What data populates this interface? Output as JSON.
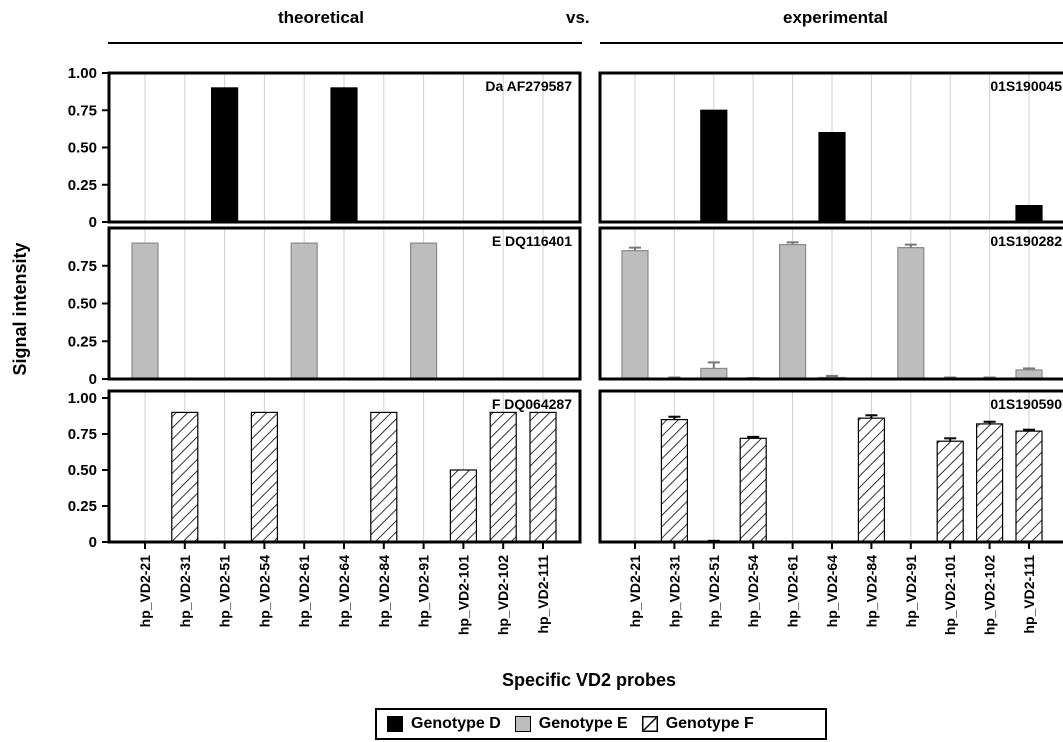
{
  "header": {
    "left": "theoretical",
    "mid": "vs.",
    "right": "experimental"
  },
  "legend": {
    "items": [
      {
        "label": "Genotype D",
        "fill": "#000000",
        "pattern": "solid"
      },
      {
        "label": "Genotype E",
        "fill": "#bdbdbd",
        "pattern": "solid"
      },
      {
        "label": "Genotype F",
        "fill": "#ffffff",
        "pattern": "hatch"
      }
    ]
  },
  "colors": {
    "D": "#000000",
    "E": "#bdbdbd",
    "F_hatch": "#000000"
  },
  "chart_data": {
    "type": "bar",
    "ylabel": "Signal intensity",
    "xlabel": "Specific VD2 probes",
    "categories": [
      "hp_VD2-21",
      "hp_VD2-31",
      "hp_VD2-51",
      "hp_VD2-54",
      "hp_VD2-61",
      "hp_VD2-64",
      "hp_VD2-84",
      "hp_VD2-91",
      "hp_VD2-101",
      "hp_VD2-102",
      "hp_VD2-111"
    ],
    "panels": [
      {
        "group": "theoretical",
        "row": 0,
        "label": "Da AF279587",
        "genotype": "D",
        "ylim": [
          0,
          1.0
        ],
        "yticks": [
          "1.00",
          "0.75",
          "0.50",
          "0.25",
          "0"
        ],
        "ytick_values": [
          1.0,
          0.75,
          0.5,
          0.25,
          0
        ],
        "values": [
          0,
          0,
          0.9,
          0,
          0,
          0.9,
          0,
          0,
          0,
          0,
          0
        ],
        "errors": null
      },
      {
        "group": "experimental",
        "row": 0,
        "label": "01S190045",
        "genotype": "D",
        "ylim": [
          0,
          1.0
        ],
        "yticks": [
          "1.00",
          "0.75",
          "0.50",
          "0.25",
          "0"
        ],
        "ytick_values": [
          1.0,
          0.75,
          0.5,
          0.25,
          0
        ],
        "values": [
          0,
          0,
          0.75,
          0,
          0,
          0.6,
          0,
          0,
          0,
          0,
          0.11
        ],
        "errors": null
      },
      {
        "group": "theoretical",
        "row": 1,
        "label": "E DQ116401",
        "genotype": "E",
        "ylim": [
          0,
          1.0
        ],
        "yticks": [
          "0.75",
          "0.50",
          "0.25",
          "0"
        ],
        "ytick_values": [
          0.75,
          0.5,
          0.25,
          0
        ],
        "values": [
          0.9,
          0,
          0,
          0,
          0.9,
          0,
          0,
          0.9,
          0,
          0,
          0
        ],
        "errors": null
      },
      {
        "group": "experimental",
        "row": 1,
        "label": "01S190282",
        "genotype": "E",
        "ylim": [
          0,
          1.0
        ],
        "yticks": [
          "0.75",
          "0.50",
          "0.25",
          "0"
        ],
        "ytick_values": [
          0.75,
          0.5,
          0.25,
          0
        ],
        "values": [
          0.85,
          0.005,
          0.07,
          0.003,
          0.89,
          0.01,
          0,
          0.87,
          0.005,
          0.005,
          0.06
        ],
        "errors": [
          0.02,
          0.005,
          0.04,
          0.003,
          0.015,
          0.01,
          0,
          0.02,
          0.005,
          0.005,
          0.01
        ]
      },
      {
        "group": "theoretical",
        "row": 2,
        "label": "F DQ064287",
        "genotype": "F",
        "ylim": [
          0,
          1.0
        ],
        "yticks": [
          "1.00",
          "0.75",
          "0.50",
          "0.25",
          "0"
        ],
        "ytick_values": [
          1.0,
          0.75,
          0.5,
          0.25,
          0
        ],
        "values": [
          0,
          0.9,
          0,
          0.9,
          0,
          0,
          0.9,
          0,
          0.5,
          0.9,
          0.9
        ],
        "errors": null
      },
      {
        "group": "experimental",
        "row": 2,
        "label": "01S190590",
        "genotype": "F",
        "ylim": [
          0,
          1.0
        ],
        "yticks": [
          "1.00",
          "0.75",
          "0.50",
          "0.25",
          "0"
        ],
        "ytick_values": [
          1.0,
          0.75,
          0.5,
          0.25,
          0
        ],
        "values": [
          0,
          0.85,
          0.005,
          0.72,
          0,
          0,
          0.86,
          0,
          0.7,
          0.82,
          0.77
        ],
        "errors": [
          0,
          0.02,
          0.003,
          0.01,
          0,
          0,
          0.02,
          0,
          0.02,
          0.015,
          0.01
        ]
      }
    ]
  }
}
